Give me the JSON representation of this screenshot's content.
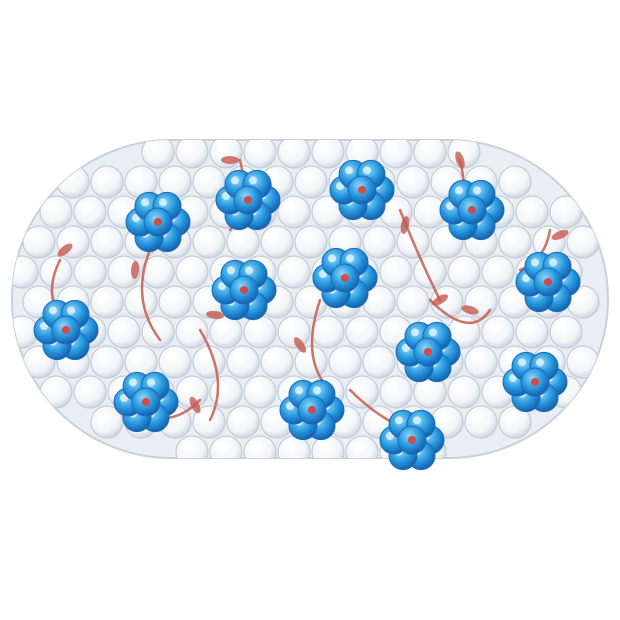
{
  "image": {
    "subject": "bath-mat",
    "colors": {
      "background": "#ffffff",
      "mat_white": "#f4f6f8",
      "mat_shadow": "#c9d2dc",
      "flower_blue": "#1f8fd8",
      "flower_blue_light": "#6cc3f0",
      "flower_center": "#d24a4a",
      "stem_red": "#c65a50"
    }
  }
}
